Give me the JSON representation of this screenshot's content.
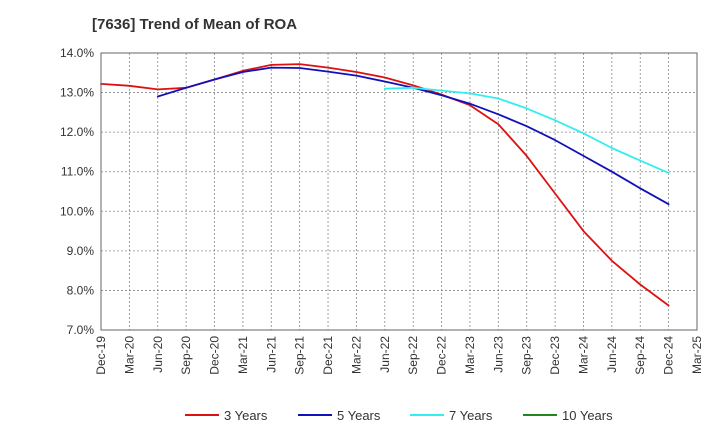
{
  "chart_data": {
    "type": "line",
    "title": "[7636]  Trend of Mean of ROA",
    "xlabel": "",
    "ylabel": "",
    "ylim": [
      7.0,
      14.0
    ],
    "yticks": [
      "7.0%",
      "8.0%",
      "9.0%",
      "10.0%",
      "11.0%",
      "12.0%",
      "13.0%",
      "14.0%"
    ],
    "ytick_values": [
      7.0,
      8.0,
      9.0,
      10.0,
      11.0,
      12.0,
      13.0,
      14.0
    ],
    "x_categories": [
      "Dec-19",
      "Mar-20",
      "Jun-20",
      "Sep-20",
      "Dec-20",
      "Mar-21",
      "Jun-21",
      "Sep-21",
      "Dec-21",
      "Mar-22",
      "Jun-22",
      "Sep-22",
      "Dec-22",
      "Mar-23",
      "Jun-23",
      "Sep-23",
      "Dec-23",
      "Mar-24",
      "Jun-24",
      "Sep-24",
      "Dec-24",
      "Mar-25"
    ],
    "grid": true,
    "legend_position": "bottom",
    "series": [
      {
        "name": "3 Years",
        "color": "#dd1111",
        "start_index": 0,
        "values": [
          13.22,
          13.17,
          13.08,
          13.12,
          13.33,
          13.55,
          13.7,
          13.72,
          13.63,
          13.52,
          13.38,
          13.18,
          12.95,
          12.68,
          12.2,
          11.4,
          10.45,
          9.5,
          8.75,
          8.15,
          7.62
        ]
      },
      {
        "name": "5 Years",
        "color": "#1111bb",
        "start_index": 2,
        "values": [
          12.9,
          13.12,
          13.33,
          13.52,
          13.63,
          13.62,
          13.53,
          13.43,
          13.28,
          13.12,
          12.93,
          12.72,
          12.45,
          12.15,
          11.8,
          11.4,
          11.0,
          10.58,
          10.18
        ]
      },
      {
        "name": "7 Years",
        "color": "#33eeee",
        "start_index": 10,
        "values": [
          13.1,
          13.12,
          13.05,
          12.98,
          12.85,
          12.6,
          12.3,
          11.97,
          11.6,
          11.28,
          10.97
        ]
      },
      {
        "name": "10 Years",
        "color": "#228822",
        "start_index": 0,
        "values": []
      }
    ]
  }
}
